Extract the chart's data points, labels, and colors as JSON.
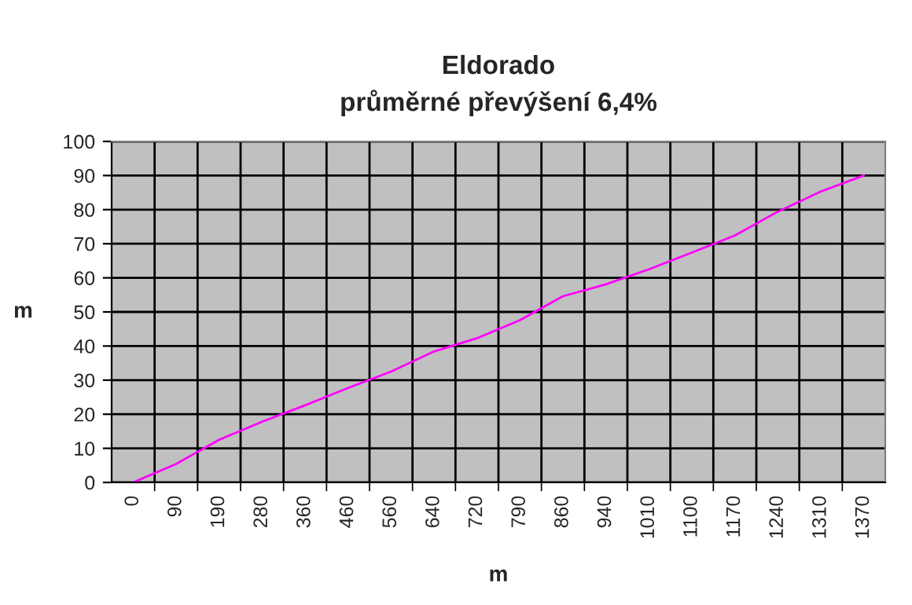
{
  "chart_data": {
    "type": "line",
    "title": "Eldorado\nprůměrné převýšení 6,4%",
    "xlabel": "m",
    "ylabel": "m",
    "categories": [
      "0",
      "90",
      "190",
      "280",
      "360",
      "460",
      "560",
      "640",
      "720",
      "790",
      "860",
      "940",
      "1010",
      "1100",
      "1170",
      "1240",
      "1310",
      "1370"
    ],
    "series": [
      {
        "color": "#ff00ff",
        "values": [
          0,
          5.4,
          12.5,
          17.8,
          22.6,
          27.7,
          32.5,
          38.4,
          42.3,
          47.6,
          54.6,
          58.1,
          62.5,
          67.4,
          72.4,
          79.4,
          85.3,
          90
        ]
      }
    ],
    "ylim": [
      0,
      100
    ],
    "yticks": [
      0,
      10,
      20,
      30,
      40,
      50,
      60,
      70,
      80,
      90,
      100
    ],
    "grid": true,
    "marker": "none",
    "line_style": "solid"
  }
}
